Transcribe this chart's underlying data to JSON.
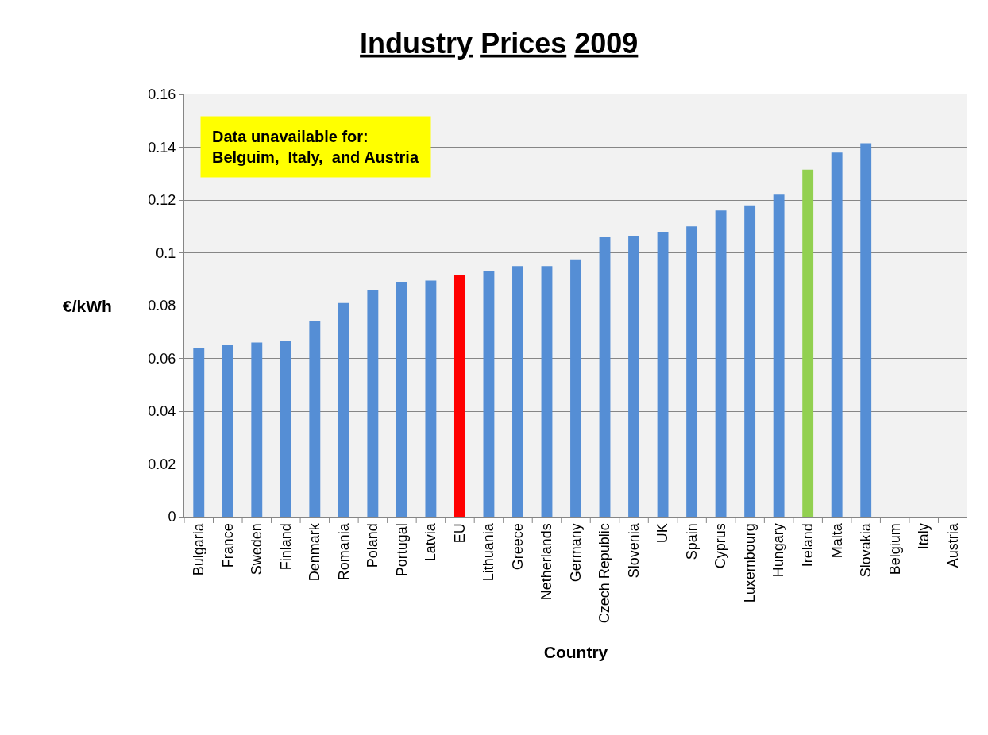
{
  "chart_data": {
    "type": "bar",
    "title": "Industry Prices 2009",
    "xlabel": "Country",
    "ylabel": "€/kWh",
    "categories": [
      "Bulgaria",
      "France",
      "Sweden",
      "Finland",
      "Denmark",
      "Romania",
      "Poland",
      "Portugal",
      "Latvia",
      "EU",
      "Lithuania",
      "Greece",
      "Netherlands",
      "Germany",
      "Czech Republic",
      "Slovenia",
      "UK",
      "Spain",
      "Cyprus",
      "Luxembourg",
      "Hungary",
      "Ireland",
      "Malta",
      "Slovakia",
      "Belgium",
      "Italy",
      "Austria"
    ],
    "values": [
      0.064,
      0.065,
      0.066,
      0.0665,
      0.074,
      0.081,
      0.086,
      0.089,
      0.0895,
      0.0915,
      0.093,
      0.095,
      0.095,
      0.0975,
      0.106,
      0.1065,
      0.108,
      0.11,
      0.116,
      0.118,
      0.122,
      0.1315,
      0.138,
      0.1415,
      null,
      null,
      null
    ],
    "colors": [
      "#558ed5",
      "#558ed5",
      "#558ed5",
      "#558ed5",
      "#558ed5",
      "#558ed5",
      "#558ed5",
      "#558ed5",
      "#558ed5",
      "#ff0000",
      "#558ed5",
      "#558ed5",
      "#558ed5",
      "#558ed5",
      "#558ed5",
      "#558ed5",
      "#558ed5",
      "#558ed5",
      "#558ed5",
      "#558ed5",
      "#558ed5",
      "#92d050",
      "#558ed5",
      "#558ed5",
      "#558ed5",
      "#558ed5",
      "#558ed5"
    ],
    "ylim": [
      0,
      0.16
    ],
    "yticks": [
      0,
      0.02,
      0.04,
      0.06,
      0.08,
      0.1,
      0.12,
      0.14,
      0.16
    ],
    "grid": "y",
    "legend": false,
    "annotations": [
      "Data unavailable for:\nBelguim,  Italy,  and Austria"
    ]
  }
}
